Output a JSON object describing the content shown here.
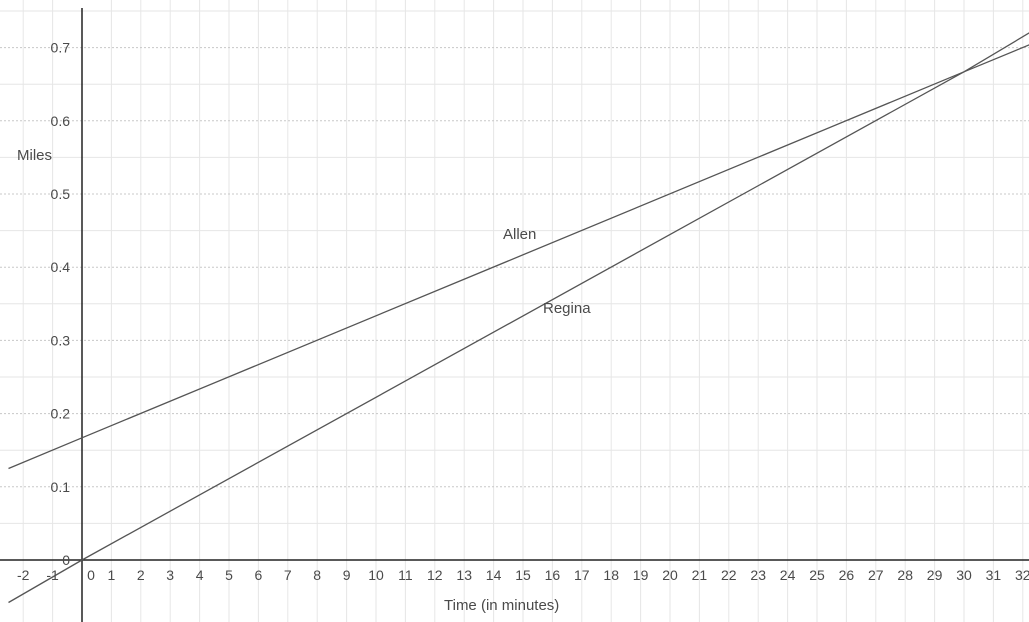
{
  "chart_data": {
    "type": "line",
    "xlabel": "Time (in minutes)",
    "ylabel": "Miles",
    "xlim": [
      -2.5,
      32.3
    ],
    "ylim": [
      -0.07,
      0.75
    ],
    "x_ticks": [
      -2,
      -1,
      0,
      1,
      2,
      3,
      4,
      5,
      6,
      7,
      8,
      9,
      10,
      11,
      12,
      13,
      14,
      15,
      16,
      17,
      18,
      19,
      20,
      21,
      22,
      23,
      24,
      25,
      26,
      27,
      28,
      29,
      30,
      31,
      32
    ],
    "y_ticks": [
      0,
      0.1,
      0.2,
      0.3,
      0.4,
      0.5,
      0.6,
      0.7
    ],
    "y_tick_labels": [
      "0",
      "0.1",
      "0.2",
      "0.3",
      "0.4",
      "0.5",
      "0.6",
      "0.7"
    ],
    "grid": true,
    "series": [
      {
        "name": "Allen",
        "x": [
          -2.5,
          0,
          30,
          32.3
        ],
        "y": [
          0.125,
          0.167,
          0.667,
          0.705
        ]
      },
      {
        "name": "Regina",
        "x": [
          -2.5,
          0,
          30,
          32.3
        ],
        "y": [
          -0.058,
          0,
          0.667,
          0.722
        ]
      }
    ],
    "colors": {
      "axis": "#222222",
      "grid": "#e6e6e6",
      "line": "#555555",
      "text": "#4a4a4a"
    }
  }
}
